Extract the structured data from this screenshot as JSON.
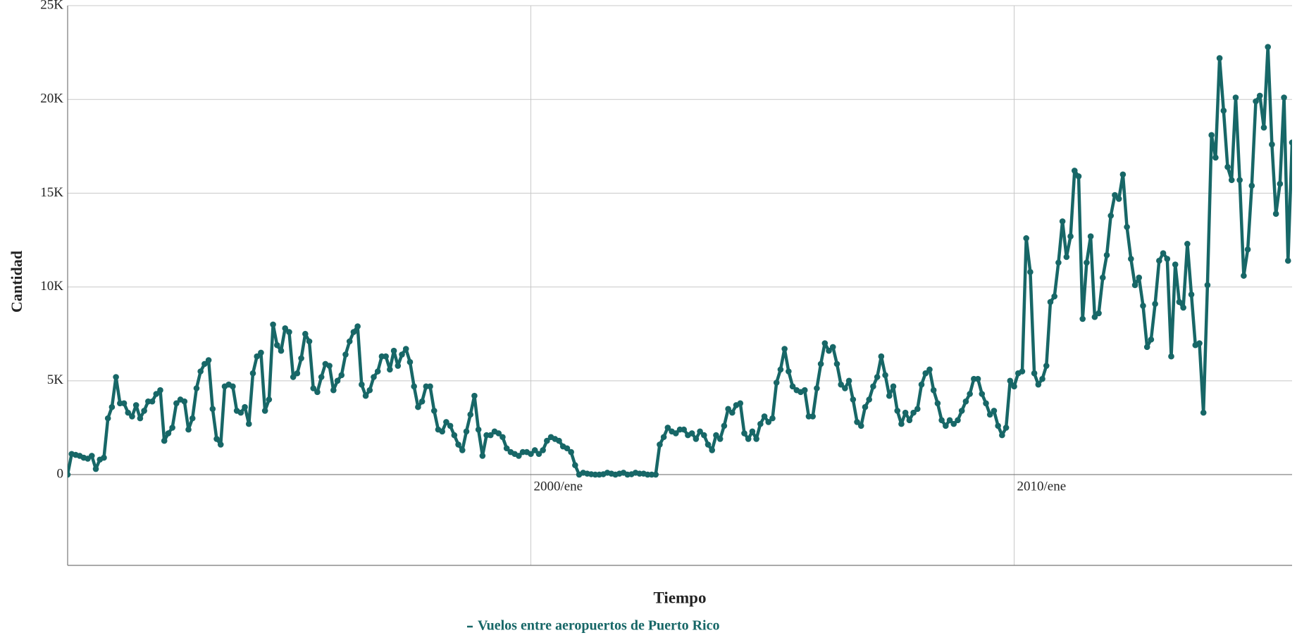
{
  "chart_data": {
    "type": "line",
    "x_label": "Tiempo",
    "y_label": "Cantidad",
    "x": [
      "1990-06",
      "1990-07",
      "1990-08",
      "1990-09",
      "1990-10",
      "1990-11",
      "1990-12",
      "1991-01",
      "1991-02",
      "1991-03",
      "1991-04",
      "1991-05",
      "1991-06",
      "1991-07",
      "1991-08",
      "1991-09",
      "1991-10",
      "1991-11",
      "1991-12",
      "1992-01",
      "1992-02",
      "1992-03",
      "1992-04",
      "1992-05",
      "1992-06",
      "1992-07",
      "1992-08",
      "1992-09",
      "1992-10",
      "1992-11",
      "1992-12",
      "1993-01",
      "1993-02",
      "1993-03",
      "1993-04",
      "1993-05",
      "1993-06",
      "1993-07",
      "1993-08",
      "1993-09",
      "1993-10",
      "1993-11",
      "1993-12",
      "1994-01",
      "1994-02",
      "1994-03",
      "1994-04",
      "1994-05",
      "1994-06",
      "1994-07",
      "1994-08",
      "1994-09",
      "1994-10",
      "1994-11",
      "1994-12",
      "1995-01",
      "1995-02",
      "1995-03",
      "1995-04",
      "1995-05",
      "1995-06",
      "1995-07",
      "1995-08",
      "1995-09",
      "1995-10",
      "1995-11",
      "1995-12",
      "1996-01",
      "1996-02",
      "1996-03",
      "1996-04",
      "1996-05",
      "1996-06",
      "1996-07",
      "1996-08",
      "1996-09",
      "1996-10",
      "1996-11",
      "1996-12",
      "1997-01",
      "1997-02",
      "1997-03",
      "1997-04",
      "1997-05",
      "1997-06",
      "1997-07",
      "1997-08",
      "1997-09",
      "1997-10",
      "1997-11",
      "1997-12",
      "1998-01",
      "1998-02",
      "1998-03",
      "1998-04",
      "1998-05",
      "1998-06",
      "1998-07",
      "1998-08",
      "1998-09",
      "1998-10",
      "1998-11",
      "1998-12",
      "1999-01",
      "1999-02",
      "1999-03",
      "1999-04",
      "1999-05",
      "1999-06",
      "1999-07",
      "1999-08",
      "1999-09",
      "1999-10",
      "1999-11",
      "1999-12",
      "2000-01",
      "2000-02",
      "2000-03",
      "2000-04",
      "2000-05",
      "2000-06",
      "2000-07",
      "2000-08",
      "2000-09",
      "2000-10",
      "2000-11",
      "2000-12",
      "2001-01",
      "2001-02",
      "2001-03",
      "2001-04",
      "2001-05",
      "2001-06",
      "2001-07",
      "2001-08",
      "2001-09",
      "2001-10",
      "2001-11",
      "2001-12",
      "2002-01",
      "2002-02",
      "2002-03",
      "2002-04",
      "2002-05",
      "2002-06",
      "2002-07",
      "2002-08",
      "2002-09",
      "2002-10",
      "2002-11",
      "2002-12",
      "2003-01",
      "2003-02",
      "2003-03",
      "2003-04",
      "2003-05",
      "2003-06",
      "2003-07",
      "2003-08",
      "2003-09",
      "2003-10",
      "2003-11",
      "2003-12",
      "2004-01",
      "2004-02",
      "2004-03",
      "2004-04",
      "2004-05",
      "2004-06",
      "2004-07",
      "2004-08",
      "2004-09",
      "2004-10",
      "2004-11",
      "2004-12",
      "2005-01",
      "2005-02",
      "2005-03",
      "2005-04",
      "2005-05",
      "2005-06",
      "2005-07",
      "2005-08",
      "2005-09",
      "2005-10",
      "2005-11",
      "2005-12",
      "2006-01",
      "2006-02",
      "2006-03",
      "2006-04",
      "2006-05",
      "2006-06",
      "2006-07",
      "2006-08",
      "2006-09",
      "2006-10",
      "2006-11",
      "2006-12",
      "2007-01",
      "2007-02",
      "2007-03",
      "2007-04",
      "2007-05",
      "2007-06",
      "2007-07",
      "2007-08",
      "2007-09",
      "2007-10",
      "2007-11",
      "2007-12",
      "2008-01",
      "2008-02",
      "2008-03",
      "2008-04",
      "2008-05",
      "2008-06",
      "2008-07",
      "2008-08",
      "2008-09",
      "2008-10",
      "2008-11",
      "2008-12",
      "2009-01",
      "2009-02",
      "2009-03",
      "2009-04",
      "2009-05",
      "2009-06",
      "2009-07",
      "2009-08",
      "2009-09",
      "2009-10",
      "2009-11",
      "2009-12",
      "2010-01",
      "2010-02",
      "2010-03",
      "2010-04",
      "2010-05",
      "2010-06",
      "2010-07",
      "2010-08",
      "2010-09",
      "2010-10",
      "2010-11",
      "2010-12",
      "2011-01",
      "2011-02",
      "2011-03",
      "2011-04",
      "2011-05",
      "2011-06",
      "2011-07",
      "2011-08",
      "2011-09",
      "2011-10",
      "2011-11",
      "2011-12",
      "2012-01",
      "2012-02",
      "2012-03",
      "2012-04",
      "2012-05",
      "2012-06",
      "2012-07",
      "2012-08",
      "2012-09",
      "2012-10",
      "2012-11",
      "2012-12",
      "2013-01",
      "2013-02",
      "2013-03",
      "2013-04",
      "2013-05",
      "2013-06",
      "2013-07",
      "2013-08",
      "2013-09",
      "2013-10",
      "2013-11",
      "2013-12",
      "2014-01",
      "2014-02",
      "2014-03",
      "2014-04",
      "2014-05",
      "2014-06",
      "2014-07",
      "2014-08",
      "2014-09",
      "2014-10",
      "2014-11",
      "2014-12",
      "2015-01",
      "2015-02",
      "2015-03",
      "2015-04",
      "2015-05",
      "2015-06",
      "2015-07",
      "2015-08",
      "2015-09",
      "2015-10"
    ],
    "series": [
      {
        "name": "Vuelos entre aeropuertos de Puerto Rico",
        "color": "#176767",
        "values": [
          0,
          1100,
          1050,
          1000,
          900,
          850,
          1000,
          300,
          800,
          900,
          3000,
          3600,
          5200,
          3800,
          3800,
          3300,
          3100,
          3700,
          3000,
          3400,
          3900,
          3900,
          4300,
          4500,
          1800,
          2200,
          2500,
          3800,
          4000,
          3900,
          2400,
          3000,
          4600,
          5500,
          5900,
          6100,
          3500,
          1900,
          1600,
          4700,
          4800,
          4700,
          3400,
          3300,
          3600,
          2700,
          5400,
          6300,
          6500,
          3400,
          4000,
          8000,
          6900,
          6600,
          7800,
          7600,
          5200,
          5400,
          6200,
          7500,
          7100,
          4600,
          4400,
          5200,
          5900,
          5800,
          4500,
          5000,
          5300,
          6400,
          7100,
          7600,
          7900,
          4800,
          4200,
          4500,
          5200,
          5500,
          6300,
          6300,
          5600,
          6600,
          5800,
          6400,
          6700,
          6000,
          4700,
          3600,
          3900,
          4700,
          4700,
          3400,
          2400,
          2300,
          2800,
          2600,
          2100,
          1600,
          1300,
          2300,
          3200,
          4200,
          2400,
          1000,
          2100,
          2100,
          2300,
          2200,
          2000,
          1400,
          1200,
          1100,
          1000,
          1200,
          1200,
          1100,
          1300,
          1100,
          1300,
          1800,
          2000,
          1900,
          1800,
          1500,
          1400,
          1200,
          500,
          0,
          100,
          50,
          20,
          0,
          0,
          20,
          100,
          50,
          0,
          50,
          100,
          0,
          20,
          100,
          50,
          50,
          0,
          0,
          0,
          1600,
          2000,
          2500,
          2300,
          2200,
          2400,
          2400,
          2100,
          2200,
          1900,
          2300,
          2100,
          1600,
          1300,
          2100,
          1900,
          2600,
          3500,
          3300,
          3700,
          3800,
          2200,
          1900,
          2300,
          1900,
          2700,
          3100,
          2800,
          3000,
          4900,
          5600,
          6700,
          5500,
          4700,
          4500,
          4400,
          4500,
          3100,
          3100,
          4600,
          5900,
          7000,
          6600,
          6800,
          5900,
          4800,
          4600,
          5000,
          4000,
          2800,
          2600,
          3600,
          4000,
          4700,
          5200,
          6300,
          5300,
          4200,
          4700,
          3400,
          2700,
          3300,
          2900,
          3300,
          3500,
          4800,
          5400,
          5600,
          4500,
          3800,
          2900,
          2600,
          2900,
          2700,
          2900,
          3400,
          3900,
          4300,
          5100,
          5100,
          4300,
          3800,
          3200,
          3400,
          2600,
          2100,
          2500,
          5000,
          4700,
          5400,
          5500,
          12600,
          10800,
          5400,
          4800,
          5100,
          5800,
          9200,
          9500,
          11300,
          13500,
          11600,
          12700,
          16200,
          15900,
          8300,
          11300,
          12700,
          8400,
          8600,
          10500,
          11700,
          13800,
          14900,
          14700,
          16000,
          13200,
          11500,
          10100,
          10500,
          9000,
          6800,
          7200,
          9100,
          11400,
          11800,
          11500,
          6300,
          11200,
          9200,
          8900,
          12300,
          9600,
          6900,
          7000,
          3300,
          10100,
          18100,
          16900,
          22200,
          19400,
          16400,
          15700,
          20100,
          15700,
          10600,
          12000,
          15400,
          19900,
          20200,
          18500,
          22800,
          17600,
          13900,
          15500,
          20100,
          11400,
          17700
        ]
      }
    ],
    "xlim": [
      "1990-06",
      "2015-10"
    ],
    "xticks": [
      {
        "value": "2000-01",
        "label": "2000/ene"
      },
      {
        "value": "2010-01",
        "label": "2010/ene"
      }
    ],
    "ylim": [
      -4840,
      25000
    ],
    "yticks": [
      {
        "value": 0,
        "label": "0"
      },
      {
        "value": 5000,
        "label": "5K"
      },
      {
        "value": 10000,
        "label": "10K"
      },
      {
        "value": 15000,
        "label": "15K"
      },
      {
        "value": 20000,
        "label": "20K"
      },
      {
        "value": 25000,
        "label": "25K"
      }
    ],
    "grid": true
  }
}
